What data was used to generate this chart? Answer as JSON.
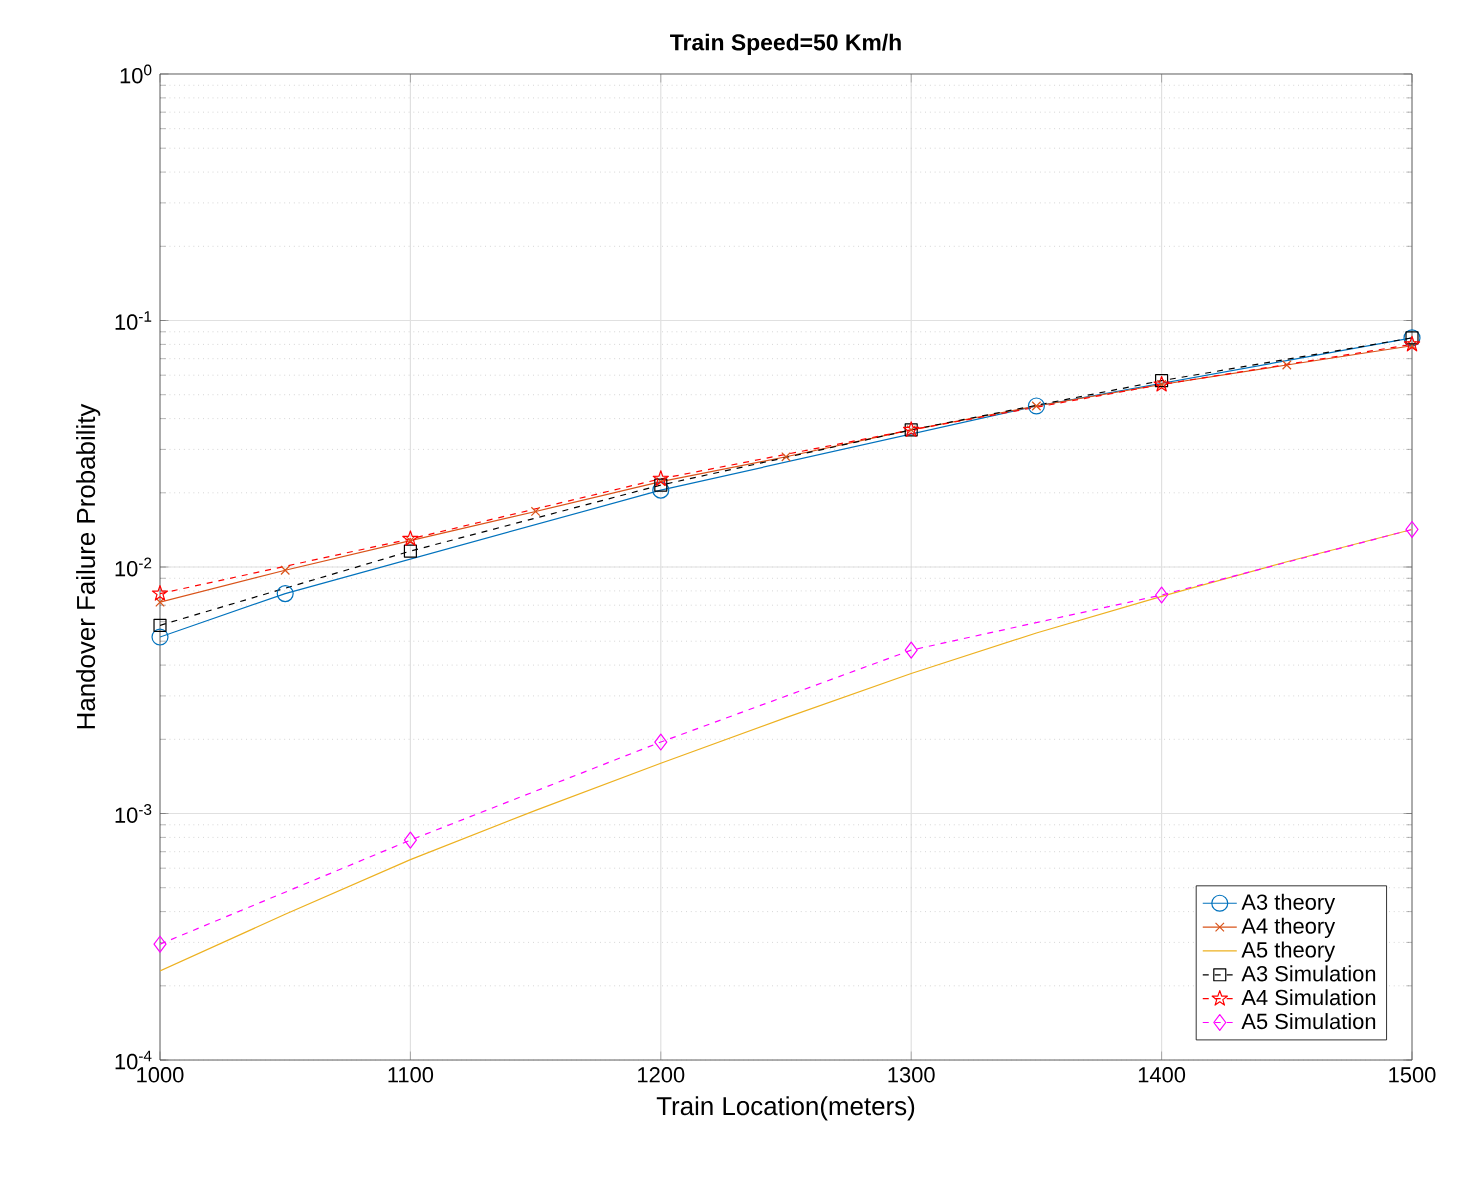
{
  "chart_data": {
    "type": "line",
    "title": "Train Speed=50 Km/h",
    "xlabel": "Train Location(meters)",
    "ylabel": "Handover Failure Probability",
    "log": "y",
    "grid": true,
    "legend": "bottom right",
    "xlim": [
      1000,
      1500
    ],
    "xticks": [
      1000,
      1100,
      1200,
      1300,
      1400,
      1500
    ],
    "ylim": [
      0.0001,
      1
    ],
    "yticks": [
      {
        "value": 0.0001,
        "label": "10$^{-4}$"
      },
      {
        "value": 0.001,
        "label": "10$^{-3}$"
      },
      {
        "value": 0.01,
        "label": "10$^{-2}$"
      },
      {
        "value": 0.1,
        "label": "10$^{-1}$"
      },
      {
        "value": 1,
        "label": "10$^{0}$"
      }
    ],
    "series": [
      {
        "name": "A3 theory",
        "color": "#0072bd",
        "marker": "circle",
        "line_style": "solid",
        "x": [
          1000,
          1050,
          1200,
          1350,
          1500
        ],
        "values": [
          0.0052,
          0.0078,
          0.0205,
          0.045,
          0.085
        ]
      },
      {
        "name": "A4 theory",
        "color": "#d95319",
        "marker": "cross",
        "line_style": "solid",
        "x": [
          1000,
          1050,
          1100,
          1150,
          1200,
          1250,
          1300,
          1350,
          1400,
          1450,
          1500
        ],
        "values": [
          0.0072,
          0.0097,
          0.0128,
          0.0168,
          0.0222,
          0.028,
          0.036,
          0.045,
          0.055,
          0.066,
          0.079
        ]
      },
      {
        "name": "A5 theory",
        "color": "#edb120",
        "marker": "none",
        "line_style": "solid",
        "x": [
          1000,
          1050,
          1100,
          1150,
          1200,
          1250,
          1300,
          1350,
          1400,
          1450,
          1500
        ],
        "values": [
          0.00023,
          0.00039,
          0.00065,
          0.00103,
          0.0016,
          0.00245,
          0.0037,
          0.0054,
          0.0076,
          0.0105,
          0.0142
        ]
      },
      {
        "name": "A3 Simulation",
        "color": "#000000",
        "marker": "square",
        "line_style": "dashed",
        "x": [
          1000,
          1100,
          1200,
          1300,
          1400,
          1500
        ],
        "values": [
          0.0058,
          0.0116,
          0.0215,
          0.036,
          0.057,
          0.085
        ]
      },
      {
        "name": "A4 Simulation",
        "color": "#ff0000",
        "marker": "star",
        "line_style": "dashed",
        "x": [
          1000,
          1100,
          1200,
          1300,
          1400,
          1500
        ],
        "values": [
          0.0078,
          0.013,
          0.0228,
          0.036,
          0.055,
          0.08
        ]
      },
      {
        "name": "A5 Simulation",
        "color": "#ff00ff",
        "marker": "diamond",
        "line_style": "dashed",
        "x": [
          1000,
          1100,
          1200,
          1300,
          1400,
          1500
        ],
        "values": [
          0.000295,
          0.00078,
          0.00195,
          0.0046,
          0.0077,
          0.0142
        ]
      }
    ]
  }
}
